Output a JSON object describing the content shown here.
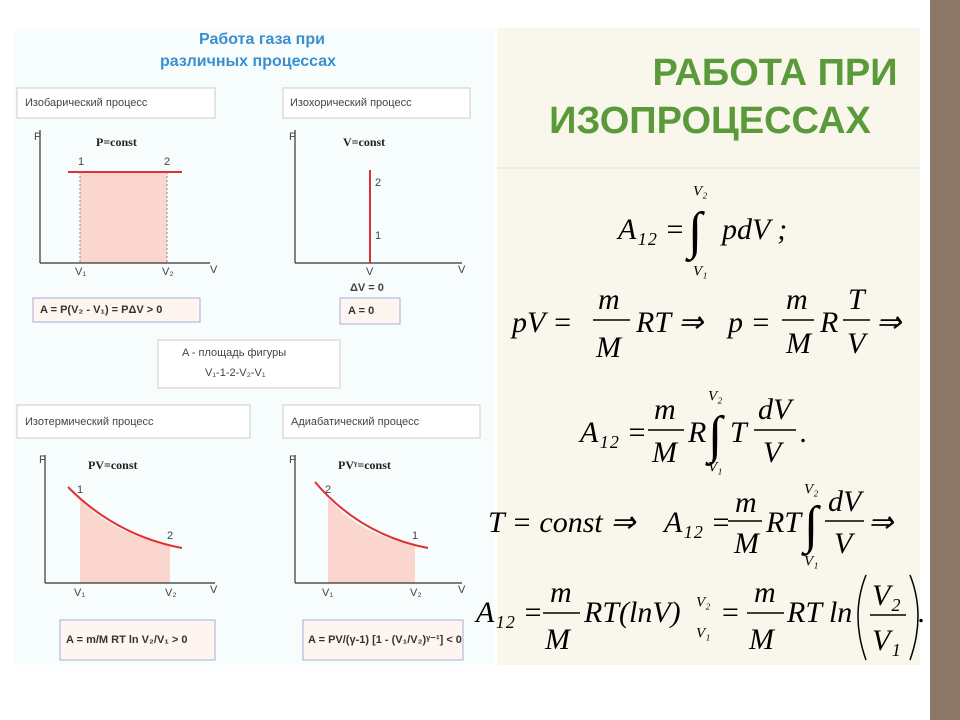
{
  "slide_title": [
    "РАБОТА ПРИ",
    "ИЗОПРОЦЕССАХ"
  ],
  "figure": {
    "title": [
      "Работа газа при",
      "различных процессах"
    ],
    "panels": [
      {
        "name": "Изобарический процесс",
        "law": "P=const",
        "y_axis": "P",
        "x_axis": "V",
        "points": [
          "1",
          "2"
        ],
        "x_marks": [
          "V₁",
          "V₂"
        ],
        "result": "A = P(V₂ - V₁) = PΔV > 0"
      },
      {
        "name": "Изохорический процесс",
        "law": "V=const",
        "y_axis": "P",
        "x_axis": "V",
        "points": [
          "2",
          "1"
        ],
        "x_marks": [
          "V"
        ],
        "extra": "ΔV = 0",
        "result": "A = 0"
      },
      {
        "name": "Изотермический процесс",
        "law": "PV=const",
        "y_axis": "P",
        "x_axis": "V",
        "points": [
          "1",
          "2"
        ],
        "x_marks": [
          "V₁",
          "V₂"
        ],
        "result": "A = m/M RT ln V₂/V₁ > 0"
      },
      {
        "name": "Адиабатический процесс",
        "law": "PVᵞ=const",
        "y_axis": "P",
        "x_axis": "V",
        "points": [
          "2",
          "1"
        ],
        "x_marks": [
          "V₁",
          "V₂"
        ],
        "result": "A = PV/(γ-1) [1 - (V₁/V₂)ᵞ⁻¹] < 0"
      }
    ],
    "note": [
      "A - площадь фигуры",
      "V₁-1-2-V₂-V₁"
    ]
  },
  "formulas": [
    [
      "A₁₂ =",
      "∫",
      "V₂",
      "V₁",
      "pdV ;"
    ],
    [
      "pV =",
      "m",
      "M",
      "RT ⇒",
      "p =",
      "m",
      "M",
      "R",
      "T",
      "V",
      "⇒"
    ],
    [
      "A₁₂ =",
      "m",
      "M",
      "R",
      "∫",
      "V₂",
      "V₁",
      "T",
      "dV",
      "V",
      "."
    ],
    [
      "T = const ⇒",
      "A₁₂ =",
      "m",
      "M",
      "RT",
      "∫",
      "V₂",
      "V₁",
      "dV",
      "V",
      "⇒"
    ],
    [
      "A₁₂ =",
      "m",
      "M",
      "RT(lnV)",
      "V₂",
      "V₁",
      "=",
      "m",
      "M",
      "RT ln",
      "V₂",
      "V₁",
      "."
    ]
  ]
}
